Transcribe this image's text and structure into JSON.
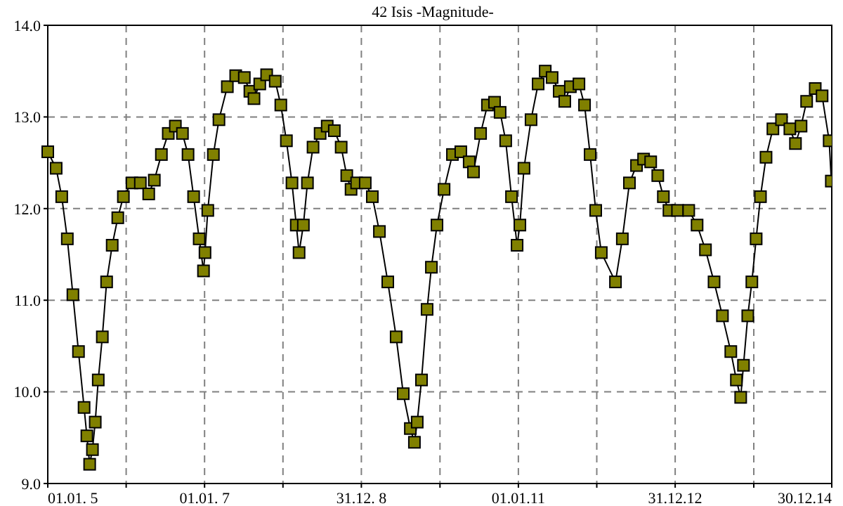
{
  "chart_data": {
    "type": "line",
    "title": "42 Isis -Magnitude-",
    "marker": "square",
    "line_style": "solid",
    "grid": true,
    "xlim": [
      "2005-01-01",
      "2014-12-30"
    ],
    "xticks": [
      {
        "value": "2005-01-01",
        "label": "01.01. 5"
      },
      {
        "value": "2006-01-01",
        "label": null
      },
      {
        "value": "2007-01-01",
        "label": "01.01. 7"
      },
      {
        "value": "2008-01-01",
        "label": null
      },
      {
        "value": "2008-12-31",
        "label": "31.12. 8"
      },
      {
        "value": "2010-01-01",
        "label": null
      },
      {
        "value": "2011-01-01",
        "label": "01.01.11"
      },
      {
        "value": "2012-01-01",
        "label": null
      },
      {
        "value": "2012-12-31",
        "label": "31.12.12"
      },
      {
        "value": "2014-01-01",
        "label": null
      },
      {
        "value": "2014-12-30",
        "label": "30.12.14"
      }
    ],
    "ylim": [
      9,
      14
    ],
    "yticks": [
      {
        "value": 9,
        "label": "9.0"
      },
      {
        "value": 10,
        "label": "10.0"
      },
      {
        "value": 11,
        "label": "11.0"
      },
      {
        "value": 12,
        "label": "12.0"
      },
      {
        "value": 13,
        "label": "13.0"
      },
      {
        "value": 14,
        "label": "14.0"
      }
    ],
    "series": [
      {
        "color": "#808000",
        "x": [
          "2005-01-01",
          "2005-02-09",
          "2005-03-07",
          "2005-04-02",
          "2005-04-28",
          "2005-05-24",
          "2005-06-19",
          "2005-07-02",
          "2005-07-15",
          "2005-07-28",
          "2005-08-10",
          "2005-08-24",
          "2005-09-12",
          "2005-10-02",
          "2005-10-28",
          "2005-11-23",
          "2005-12-19",
          "2006-01-28",
          "2006-03-08",
          "2006-04-16",
          "2006-05-12",
          "2006-06-14",
          "2006-07-16",
          "2006-08-18",
          "2006-09-20",
          "2006-10-16",
          "2006-11-11",
          "2006-12-07",
          "2006-12-27",
          "2007-01-03",
          "2007-01-16",
          "2007-02-11",
          "2007-03-09",
          "2007-04-17",
          "2007-05-26",
          "2007-07-05",
          "2007-07-31",
          "2007-08-19",
          "2007-09-15",
          "2007-10-17",
          "2007-11-26",
          "2007-12-22",
          "2008-01-17",
          "2008-02-12",
          "2008-03-03",
          "2008-03-16",
          "2008-04-05",
          "2008-04-24",
          "2008-05-20",
          "2008-06-22",
          "2008-07-25",
          "2008-08-27",
          "2008-09-28",
          "2008-10-24",
          "2008-11-13",
          "2008-12-09",
          "2009-01-18",
          "2009-02-20",
          "2009-03-25",
          "2009-05-03",
          "2009-06-11",
          "2009-07-14",
          "2009-08-16",
          "2009-09-04",
          "2009-09-17",
          "2009-10-07",
          "2009-11-02",
          "2009-11-22",
          "2009-12-18",
          "2010-01-20",
          "2010-02-28",
          "2010-04-08",
          "2010-05-17",
          "2010-06-06",
          "2010-07-09",
          "2010-08-10",
          "2010-09-12",
          "2010-10-08",
          "2010-11-03",
          "2010-11-30",
          "2010-12-26",
          "2011-01-08",
          "2011-01-27",
          "2011-03-01",
          "2011-04-03",
          "2011-05-06",
          "2011-06-07",
          "2011-07-10",
          "2011-08-05",
          "2011-08-31",
          "2011-10-10",
          "2011-11-05",
          "2011-12-01",
          "2011-12-27",
          "2012-01-22",
          "2012-03-28",
          "2012-04-29",
          "2012-06-01",
          "2012-07-04",
          "2012-08-06",
          "2012-09-08",
          "2012-10-11",
          "2012-11-06",
          "2012-12-02",
          "2013-01-11",
          "2013-03-04",
          "2013-04-12",
          "2013-05-21",
          "2013-06-30",
          "2013-08-08",
          "2013-09-16",
          "2013-10-12",
          "2013-11-01",
          "2013-11-14",
          "2013-12-04",
          "2013-12-23",
          "2014-01-12",
          "2014-02-01",
          "2014-02-27",
          "2014-03-31",
          "2014-05-10",
          "2014-06-18",
          "2014-07-14",
          "2014-08-09",
          "2014-09-04",
          "2014-10-14",
          "2014-11-15",
          "2014-12-18",
          "2014-12-28"
        ],
        "values": [
          12.62,
          12.44,
          12.13,
          11.67,
          11.06,
          10.44,
          9.83,
          9.52,
          9.21,
          9.37,
          9.67,
          10.13,
          10.6,
          11.2,
          11.6,
          11.9,
          12.13,
          12.28,
          12.28,
          12.16,
          12.31,
          12.59,
          12.82,
          12.9,
          12.82,
          12.59,
          12.13,
          11.67,
          11.32,
          11.52,
          11.98,
          12.59,
          12.97,
          13.33,
          13.45,
          13.43,
          13.28,
          13.2,
          13.36,
          13.46,
          13.39,
          13.13,
          12.74,
          12.28,
          11.82,
          11.52,
          11.82,
          12.28,
          12.67,
          12.82,
          12.9,
          12.85,
          12.67,
          12.36,
          12.21,
          12.28,
          12.28,
          12.13,
          11.75,
          11.2,
          10.6,
          9.98,
          9.6,
          9.45,
          9.67,
          10.13,
          10.9,
          11.36,
          11.82,
          12.21,
          12.59,
          12.62,
          12.51,
          12.4,
          12.82,
          13.13,
          13.16,
          13.05,
          12.74,
          12.13,
          11.6,
          11.82,
          12.44,
          12.97,
          13.36,
          13.5,
          13.43,
          13.28,
          13.17,
          13.33,
          13.36,
          13.13,
          12.59,
          11.98,
          11.52,
          11.2,
          11.67,
          12.28,
          12.47,
          12.54,
          12.51,
          12.36,
          12.13,
          11.98,
          11.98,
          11.98,
          11.82,
          11.55,
          11.2,
          10.83,
          10.44,
          10.13,
          9.94,
          10.29,
          10.83,
          11.2,
          11.67,
          12.13,
          12.56,
          12.87,
          12.97,
          12.87,
          12.71,
          12.9,
          13.17,
          13.31,
          13.23,
          12.74,
          12.3
        ]
      }
    ]
  }
}
